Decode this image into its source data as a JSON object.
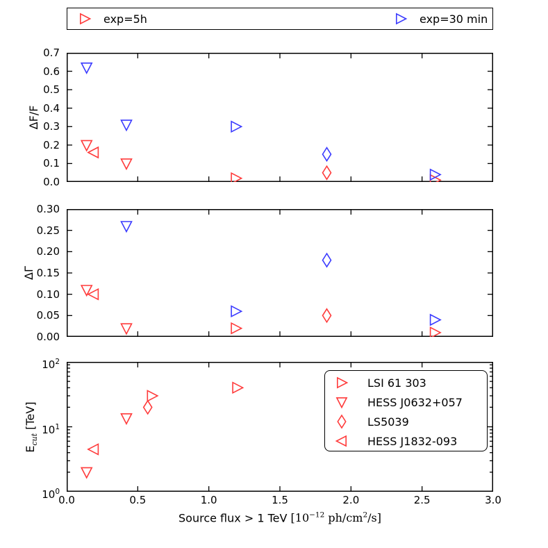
{
  "figure": {
    "background": "#ffffff",
    "axis_color": "#000000",
    "red": "#ff3b3b",
    "blue": "#3b3bff"
  },
  "top_legend": {
    "entries": [
      {
        "label": "exp=5h",
        "marker": "triangle-right",
        "color": "#ff3b3b"
      },
      {
        "label": "exp=30 min",
        "marker": "triangle-right",
        "color": "#3b3bff"
      }
    ]
  },
  "source_legend": {
    "entries": [
      {
        "label": "LSI 61 303",
        "marker": "triangle-right",
        "color": "#ff3b3b"
      },
      {
        "label": "HESS J0632+057",
        "marker": "triangle-down",
        "color": "#ff3b3b"
      },
      {
        "label": "LS5039",
        "marker": "diamond",
        "color": "#ff3b3b"
      },
      {
        "label": "HESS J1832-093",
        "marker": "triangle-left",
        "color": "#ff3b3b"
      }
    ]
  },
  "xaxis": {
    "label_parts": {
      "lead": "Source flux > 1 TeV ",
      "open": "[10",
      "exp": "−12",
      "mid": " ph/cm",
      "sq": "2",
      "close": "/s]"
    },
    "xlim": [
      0.0,
      3.0
    ],
    "ticks": [
      0.0,
      0.5,
      1.0,
      1.5,
      2.0,
      2.5,
      3.0
    ],
    "tick_labels": [
      "0.0",
      "0.5",
      "1.0",
      "1.5",
      "2.0",
      "2.5",
      "3.0"
    ]
  },
  "chart_data": [
    {
      "id": "delta_f_over_f",
      "type": "scatter",
      "ylabel": "ΔF/F",
      "yscale": "linear",
      "ylim": [
        0.0,
        0.7
      ],
      "yticks": [
        0.0,
        0.1,
        0.2,
        0.3,
        0.4,
        0.5,
        0.6,
        0.7
      ],
      "ytick_labels": [
        "0.0",
        "0.1",
        "0.2",
        "0.3",
        "0.4",
        "0.5",
        "0.6",
        "0.7"
      ],
      "grid": false,
      "series": [
        {
          "name": "exp=5h",
          "color": "#ff3b3b",
          "points": [
            {
              "source": "HESS J0632+057",
              "marker": "triangle-down",
              "x": 0.14,
              "y": 0.2
            },
            {
              "source": "HESS J1832-093",
              "marker": "triangle-left",
              "x": 0.19,
              "y": 0.16
            },
            {
              "source": "HESS J0632+057",
              "marker": "triangle-down",
              "x": 0.42,
              "y": 0.1
            },
            {
              "source": "LSI 61 303",
              "marker": "triangle-right",
              "x": 1.19,
              "y": 0.02
            },
            {
              "source": "LS5039",
              "marker": "diamond",
              "x": 1.83,
              "y": 0.05
            },
            {
              "source": "LSI 61 303",
              "marker": "triangle-right",
              "x": 2.59,
              "y": 0.01
            }
          ]
        },
        {
          "name": "exp=30 min",
          "color": "#3b3bff",
          "points": [
            {
              "source": "HESS J0632+057",
              "marker": "triangle-down",
              "x": 0.14,
              "y": 0.62
            },
            {
              "source": "HESS J0632+057",
              "marker": "triangle-down",
              "x": 0.42,
              "y": 0.31
            },
            {
              "source": "LSI 61 303",
              "marker": "triangle-right",
              "x": 1.19,
              "y": 0.3
            },
            {
              "source": "LS5039",
              "marker": "diamond",
              "x": 1.83,
              "y": 0.15
            },
            {
              "source": "LSI 61 303",
              "marker": "triangle-right",
              "x": 2.59,
              "y": 0.04
            }
          ]
        }
      ]
    },
    {
      "id": "delta_gamma",
      "type": "scatter",
      "ylabel": "ΔΓ",
      "yscale": "linear",
      "ylim": [
        0.0,
        0.3
      ],
      "yticks": [
        0.0,
        0.05,
        0.1,
        0.15,
        0.2,
        0.25,
        0.3
      ],
      "ytick_labels": [
        "0.00",
        "0.05",
        "0.10",
        "0.15",
        "0.20",
        "0.25",
        "0.30"
      ],
      "grid": false,
      "series": [
        {
          "name": "exp=5h",
          "color": "#ff3b3b",
          "points": [
            {
              "source": "HESS J0632+057",
              "marker": "triangle-down",
              "x": 0.14,
              "y": 0.11
            },
            {
              "source": "HESS J1832-093",
              "marker": "triangle-left",
              "x": 0.19,
              "y": 0.1
            },
            {
              "source": "HESS J0632+057",
              "marker": "triangle-down",
              "x": 0.42,
              "y": 0.02
            },
            {
              "source": "LSI 61 303",
              "marker": "triangle-right",
              "x": 1.19,
              "y": 0.02
            },
            {
              "source": "LS5039",
              "marker": "diamond",
              "x": 1.83,
              "y": 0.05
            },
            {
              "source": "LSI 61 303",
              "marker": "triangle-right",
              "x": 2.59,
              "y": 0.01
            }
          ]
        },
        {
          "name": "exp=30 min",
          "color": "#3b3bff",
          "points": [
            {
              "source": "HESS J0632+057",
              "marker": "triangle-down",
              "x": 0.42,
              "y": 0.26
            },
            {
              "source": "LSI 61 303",
              "marker": "triangle-right",
              "x": 1.19,
              "y": 0.06
            },
            {
              "source": "LS5039",
              "marker": "diamond",
              "x": 1.83,
              "y": 0.18
            },
            {
              "source": "LSI 61 303",
              "marker": "triangle-right",
              "x": 2.59,
              "y": 0.04
            }
          ]
        }
      ]
    },
    {
      "id": "e_cut",
      "type": "scatter",
      "ylabel_parts": {
        "base": "E",
        "sub": "cut",
        "unit": " [TeV]"
      },
      "yscale": "log",
      "ylim": [
        1,
        100
      ],
      "yticks": [
        1,
        10,
        100
      ],
      "ytick_labels": [
        {
          "base": "10",
          "exp": "0"
        },
        {
          "base": "10",
          "exp": "1"
        },
        {
          "base": "10",
          "exp": "2"
        }
      ],
      "grid": false,
      "series": [
        {
          "name": "exp=5h",
          "color": "#ff3b3b",
          "points": [
            {
              "source": "HESS J0632+057",
              "marker": "triangle-down",
              "x": 0.14,
              "y": 2.0
            },
            {
              "source": "HESS J1832-093",
              "marker": "triangle-left",
              "x": 0.19,
              "y": 4.5
            },
            {
              "source": "HESS J0632+057",
              "marker": "triangle-down",
              "x": 0.42,
              "y": 13.5
            },
            {
              "source": "LS5039",
              "marker": "diamond",
              "x": 0.57,
              "y": 20
            },
            {
              "source": "LSI 61 303",
              "marker": "triangle-right",
              "x": 0.6,
              "y": 30
            },
            {
              "source": "LSI 61 303",
              "marker": "triangle-right",
              "x": 1.2,
              "y": 40
            }
          ]
        }
      ]
    }
  ]
}
